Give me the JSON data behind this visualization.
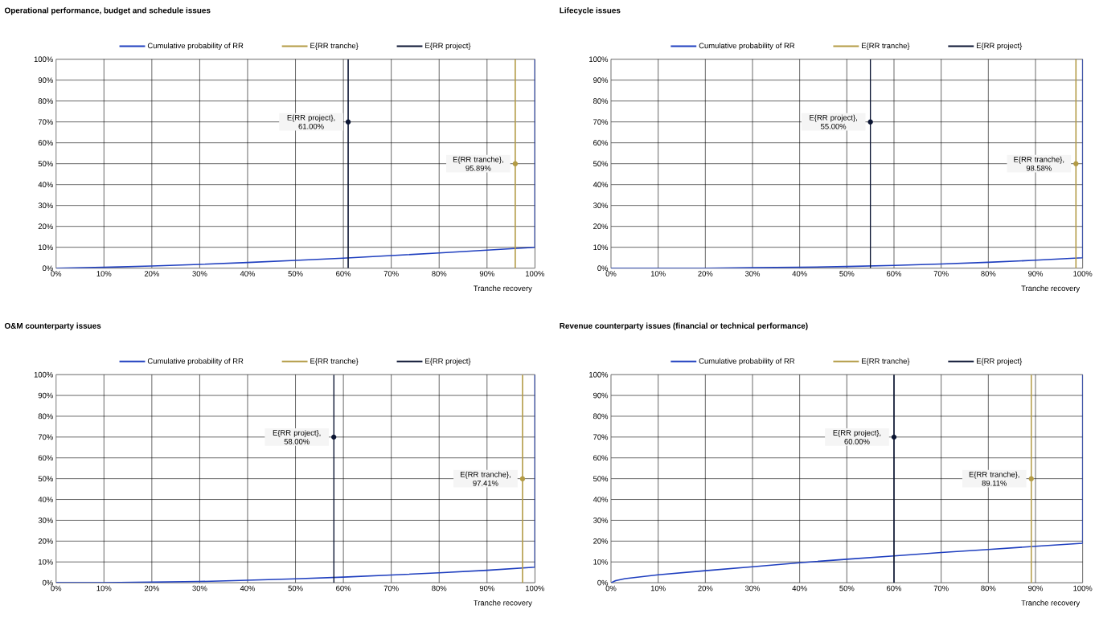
{
  "chart_data": [
    {
      "type": "line",
      "title": "Operational performance, budget and schedule issues",
      "xlabel": "Tranche recovery",
      "xlim": [
        0,
        100
      ],
      "ylim": [
        0,
        100
      ],
      "xticks": [
        {
          "value": 0,
          "label": "0%"
        },
        {
          "value": 10,
          "label": "10%"
        },
        {
          "value": 20,
          "label": "20%"
        },
        {
          "value": 30,
          "label": "30%"
        },
        {
          "value": 40,
          "label": "40%"
        },
        {
          "value": 50,
          "label": "50%"
        },
        {
          "value": 60,
          "label": "60%"
        },
        {
          "value": 70,
          "label": "70%"
        },
        {
          "value": 80,
          "label": "80%"
        },
        {
          "value": 90,
          "label": "90%"
        },
        {
          "value": 100,
          "label": "100%"
        }
      ],
      "yticks": [
        {
          "value": 0,
          "label": "0%"
        },
        {
          "value": 10,
          "label": "10%"
        },
        {
          "value": 20,
          "label": "20%"
        },
        {
          "value": 30,
          "label": "30%"
        },
        {
          "value": 40,
          "label": "40%"
        },
        {
          "value": 50,
          "label": "50%"
        },
        {
          "value": 60,
          "label": "60%"
        },
        {
          "value": 70,
          "label": "70%"
        },
        {
          "value": 80,
          "label": "80%"
        },
        {
          "value": 90,
          "label": "90%"
        },
        {
          "value": 100,
          "label": "100%"
        }
      ],
      "grid": true,
      "legend": "top",
      "series": [
        {
          "name": "Cumulative probability of RR",
          "color": "#1f3fbf",
          "x": [
            0,
            10,
            20,
            30,
            40,
            50,
            60,
            70,
            80,
            90,
            100,
            100
          ],
          "values": [
            0,
            0.4,
            1,
            1.8,
            2.7,
            3.7,
            4.8,
            6,
            7.3,
            8.6,
            10,
            100
          ]
        },
        {
          "name": "E{RR tranche}",
          "color": "#b39b45",
          "x": [
            95.89,
            95.89
          ],
          "values": [
            0,
            100
          ]
        },
        {
          "name": "E{RR project}",
          "color": "#0b1533",
          "x": [
            61,
            61
          ],
          "values": [
            0,
            100
          ]
        }
      ],
      "annotations": [
        {
          "text": "E{RR project}, 61.00%",
          "x": 61,
          "y": 70
        },
        {
          "text": "E{RR tranche}, 95.89%",
          "x": 95.89,
          "y": 50
        }
      ]
    },
    {
      "type": "line",
      "title": "Lifecycle issues",
      "xlabel": "Tranche recovery",
      "xlim": [
        0,
        100
      ],
      "ylim": [
        0,
        100
      ],
      "xticks": [
        {
          "value": 0,
          "label": "0%"
        },
        {
          "value": 10,
          "label": "10%"
        },
        {
          "value": 20,
          "label": "20%"
        },
        {
          "value": 30,
          "label": "30%"
        },
        {
          "value": 40,
          "label": "40%"
        },
        {
          "value": 50,
          "label": "50%"
        },
        {
          "value": 60,
          "label": "60%"
        },
        {
          "value": 70,
          "label": "70%"
        },
        {
          "value": 80,
          "label": "80%"
        },
        {
          "value": 90,
          "label": "90%"
        },
        {
          "value": 100,
          "label": "100%"
        }
      ],
      "yticks": [
        {
          "value": 0,
          "label": "0%"
        },
        {
          "value": 10,
          "label": "10%"
        },
        {
          "value": 20,
          "label": "20%"
        },
        {
          "value": 30,
          "label": "30%"
        },
        {
          "value": 40,
          "label": "40%"
        },
        {
          "value": 50,
          "label": "50%"
        },
        {
          "value": 60,
          "label": "60%"
        },
        {
          "value": 70,
          "label": "70%"
        },
        {
          "value": 80,
          "label": "80%"
        },
        {
          "value": 90,
          "label": "90%"
        },
        {
          "value": 100,
          "label": "100%"
        }
      ],
      "grid": true,
      "legend": "top",
      "series": [
        {
          "name": "Cumulative probability of RR",
          "color": "#1f3fbf",
          "x": [
            0,
            10,
            20,
            30,
            40,
            50,
            60,
            70,
            80,
            90,
            100,
            100
          ],
          "values": [
            0,
            0,
            0,
            0.2,
            0.4,
            0.8,
            1.3,
            2,
            2.8,
            3.8,
            5,
            100
          ]
        },
        {
          "name": "E{RR tranche}",
          "color": "#b39b45",
          "x": [
            98.58,
            98.58
          ],
          "values": [
            0,
            100
          ]
        },
        {
          "name": "E{RR project}",
          "color": "#0b1533",
          "x": [
            55,
            55
          ],
          "values": [
            0,
            100
          ]
        }
      ],
      "annotations": [
        {
          "text": "E{RR project}, 55.00%",
          "x": 55,
          "y": 70
        },
        {
          "text": "E{RR tranche}, 98.58%",
          "x": 98.58,
          "y": 50
        }
      ]
    },
    {
      "type": "line",
      "title": "O&M counterparty issues",
      "xlabel": "Tranche recovery",
      "xlim": [
        0,
        100
      ],
      "ylim": [
        0,
        100
      ],
      "xticks": [
        {
          "value": 0,
          "label": "0%"
        },
        {
          "value": 10,
          "label": "10%"
        },
        {
          "value": 20,
          "label": "20%"
        },
        {
          "value": 30,
          "label": "30%"
        },
        {
          "value": 40,
          "label": "40%"
        },
        {
          "value": 50,
          "label": "50%"
        },
        {
          "value": 60,
          "label": "60%"
        },
        {
          "value": 70,
          "label": "70%"
        },
        {
          "value": 80,
          "label": "80%"
        },
        {
          "value": 90,
          "label": "90%"
        },
        {
          "value": 100,
          "label": "100%"
        }
      ],
      "yticks": [
        {
          "value": 0,
          "label": "0%"
        },
        {
          "value": 10,
          "label": "10%"
        },
        {
          "value": 20,
          "label": "20%"
        },
        {
          "value": 30,
          "label": "30%"
        },
        {
          "value": 40,
          "label": "40%"
        },
        {
          "value": 50,
          "label": "50%"
        },
        {
          "value": 60,
          "label": "60%"
        },
        {
          "value": 70,
          "label": "70%"
        },
        {
          "value": 80,
          "label": "80%"
        },
        {
          "value": 90,
          "label": "90%"
        },
        {
          "value": 100,
          "label": "100%"
        }
      ],
      "grid": true,
      "legend": "top",
      "series": [
        {
          "name": "Cumulative probability of RR",
          "color": "#1f3fbf",
          "x": [
            0,
            10,
            20,
            30,
            40,
            50,
            60,
            70,
            80,
            90,
            100,
            100
          ],
          "values": [
            0,
            0,
            0.3,
            0.6,
            1.2,
            1.9,
            2.7,
            3.7,
            4.8,
            6,
            7.5,
            100
          ]
        },
        {
          "name": "E{RR tranche}",
          "color": "#b39b45",
          "x": [
            97.41,
            97.41
          ],
          "values": [
            0,
            100
          ]
        },
        {
          "name": "E{RR project}",
          "color": "#0b1533",
          "x": [
            58,
            58
          ],
          "values": [
            0,
            100
          ]
        }
      ],
      "annotations": [
        {
          "text": "E{RR project}, 58.00%",
          "x": 58,
          "y": 70
        },
        {
          "text": "E{RR tranche}, 97.41%",
          "x": 97.41,
          "y": 50
        }
      ]
    },
    {
      "type": "line",
      "title": "Revenue counterparty issues (financial or technical performance)",
      "xlabel": "Tranche recovery",
      "xlim": [
        0,
        100
      ],
      "ylim": [
        0,
        100
      ],
      "xticks": [
        {
          "value": 0,
          "label": "0%"
        },
        {
          "value": 10,
          "label": "10%"
        },
        {
          "value": 20,
          "label": "20%"
        },
        {
          "value": 30,
          "label": "30%"
        },
        {
          "value": 40,
          "label": "40%"
        },
        {
          "value": 50,
          "label": "50%"
        },
        {
          "value": 60,
          "label": "60%"
        },
        {
          "value": 70,
          "label": "70%"
        },
        {
          "value": 80,
          "label": "80%"
        },
        {
          "value": 90,
          "label": "90%"
        },
        {
          "value": 100,
          "label": "100%"
        }
      ],
      "yticks": [
        {
          "value": 0,
          "label": "0%"
        },
        {
          "value": 10,
          "label": "10%"
        },
        {
          "value": 20,
          "label": "20%"
        },
        {
          "value": 30,
          "label": "30%"
        },
        {
          "value": 40,
          "label": "40%"
        },
        {
          "value": 50,
          "label": "50%"
        },
        {
          "value": 60,
          "label": "60%"
        },
        {
          "value": 70,
          "label": "70%"
        },
        {
          "value": 80,
          "label": "80%"
        },
        {
          "value": 90,
          "label": "90%"
        },
        {
          "value": 100,
          "label": "100%"
        }
      ],
      "grid": true,
      "legend": "top",
      "series": [
        {
          "name": "Cumulative probability of RR",
          "color": "#1f3fbf",
          "x": [
            0,
            1,
            3,
            10,
            20,
            30,
            40,
            50,
            60,
            70,
            80,
            90,
            100,
            100
          ],
          "values": [
            0,
            1,
            2,
            3.8,
            5.8,
            7.7,
            9.6,
            11.3,
            12.9,
            14.5,
            16,
            17.5,
            19,
            100
          ]
        },
        {
          "name": "E{RR tranche}",
          "color": "#b39b45",
          "x": [
            89.11,
            89.11
          ],
          "values": [
            0,
            100
          ]
        },
        {
          "name": "E{RR project}",
          "color": "#0b1533",
          "x": [
            60,
            60
          ],
          "values": [
            0,
            100
          ]
        }
      ],
      "annotations": [
        {
          "text": "E{RR project}, 60.00%",
          "x": 60,
          "y": 70
        },
        {
          "text": "E{RR tranche}, 89.11%",
          "x": 89.11,
          "y": 50
        }
      ]
    }
  ]
}
